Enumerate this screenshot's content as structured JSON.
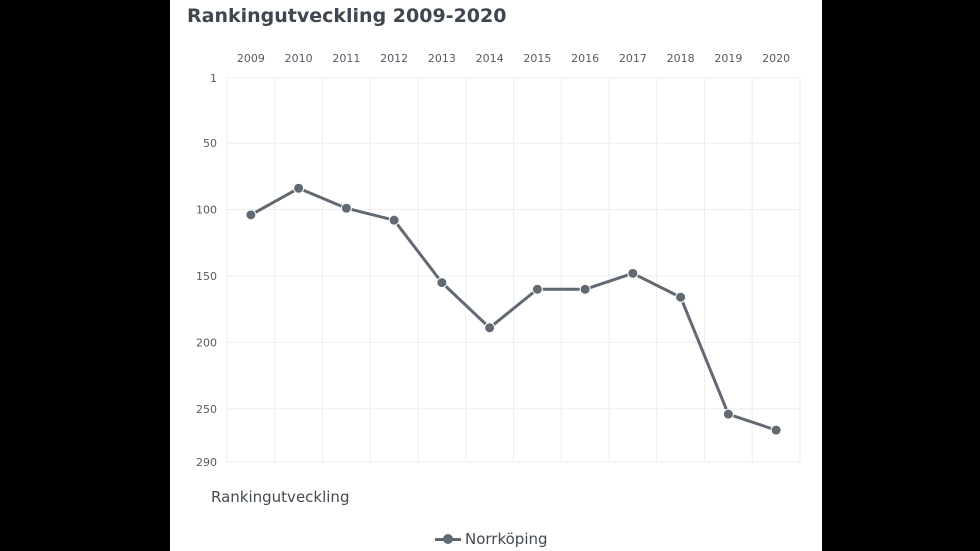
{
  "chart_data": {
    "type": "line",
    "title": "Rankingutveckling 2009-2020",
    "subtitle": "Rankingutveckling",
    "x": [
      "2009",
      "2010",
      "2011",
      "2012",
      "2013",
      "2014",
      "2015",
      "2016",
      "2017",
      "2018",
      "2019",
      "2020"
    ],
    "series": [
      {
        "name": "Norrköping",
        "color": "#616973",
        "values": [
          104,
          84,
          99,
          108,
          155,
          189,
          160,
          160,
          148,
          166,
          254,
          266
        ]
      }
    ],
    "y_ticks": [
      1,
      50,
      100,
      150,
      200,
      250,
      290
    ],
    "ylim": [
      1,
      290
    ],
    "y_reversed": true,
    "x_axis_position": "top",
    "grid": true,
    "legend": "bottom-center"
  }
}
